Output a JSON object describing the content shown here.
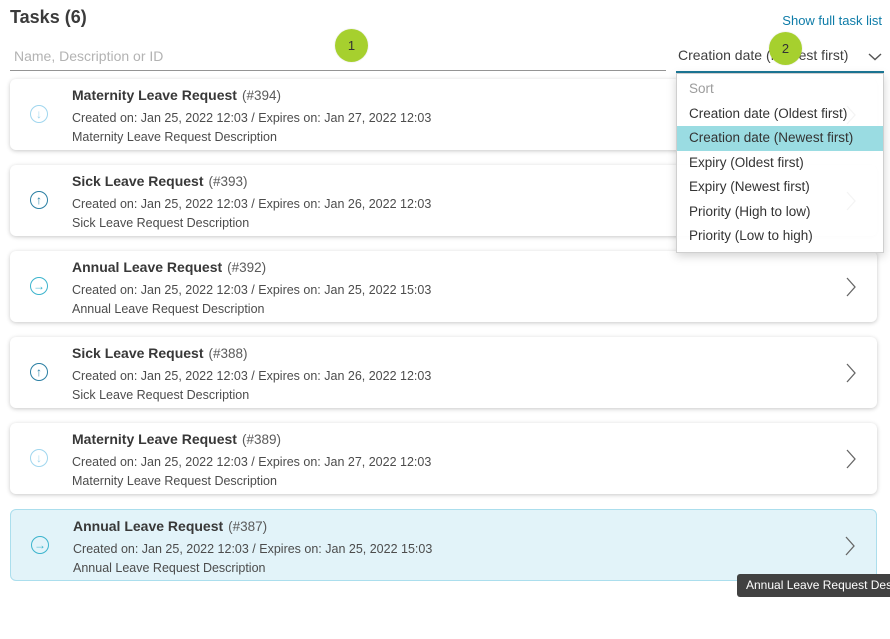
{
  "header": {
    "title": "Tasks (6)",
    "show_full_link": "Show full task list"
  },
  "search": {
    "placeholder": "Name, Description or ID"
  },
  "sort": {
    "value": "Creation date (Newest first)",
    "menu_header": "Sort",
    "options": [
      {
        "label": "Creation date (Oldest first)",
        "selected": false
      },
      {
        "label": "Creation date (Newest first)",
        "selected": true
      },
      {
        "label": "Expiry (Oldest first)",
        "selected": false
      },
      {
        "label": "Expiry (Newest first)",
        "selected": false
      },
      {
        "label": "Priority (High to low)",
        "selected": false
      },
      {
        "label": "Priority (Low to high)",
        "selected": false
      }
    ]
  },
  "annotations": {
    "badge1": "1",
    "badge2": "2"
  },
  "tasks": [
    {
      "name": "Maternity Leave Request",
      "ref": "(#394)",
      "meta": "Created on: Jan 25, 2022 12:03 / Expires on: Jan 27, 2022 12:03",
      "description": "Maternity Leave Request Description",
      "priority": "low",
      "selected": false
    },
    {
      "name": "Sick Leave Request",
      "ref": "(#393)",
      "meta": "Created on: Jan 25, 2022 12:03 / Expires on: Jan 26, 2022 12:03",
      "description": "Sick Leave Request Description",
      "priority": "high",
      "selected": false
    },
    {
      "name": "Annual Leave Request",
      "ref": "(#392)",
      "meta": "Created on: Jan 25, 2022 12:03 / Expires on: Jan 25, 2022 15:03",
      "description": "Annual Leave Request Description",
      "priority": "medium",
      "selected": false
    },
    {
      "name": "Sick Leave Request",
      "ref": "(#388)",
      "meta": "Created on: Jan 25, 2022 12:03 / Expires on: Jan 26, 2022 12:03",
      "description": "Sick Leave Request Description",
      "priority": "high",
      "selected": false
    },
    {
      "name": "Maternity Leave Request",
      "ref": "(#389)",
      "meta": "Created on: Jan 25, 2022 12:03 / Expires on: Jan 27, 2022 12:03",
      "description": "Maternity Leave Request Description",
      "priority": "low",
      "selected": false
    },
    {
      "name": "Annual Leave Request",
      "ref": "(#387)",
      "meta": "Created on: Jan 25, 2022 12:03 / Expires on: Jan 25, 2022 15:03",
      "description": "Annual Leave Request Description",
      "priority": "medium",
      "selected": true
    }
  ],
  "tooltip": {
    "text": "Annual Leave Request Description"
  },
  "icons": {
    "priority-low": "↓",
    "priority-high": "↑",
    "priority-medium": "→"
  },
  "colors": {
    "accent_link": "#0e7ca8",
    "select_underline": "#1b7897",
    "badge_green": "#a6d02e",
    "menu_highlight": "#9adce2",
    "selected_row_bg": "#e2f3f9",
    "selected_row_border": "#abdeed",
    "priority_low": "#a0d6ee",
    "priority_medium": "#3cb4cd",
    "priority_high": "#2b7fa3",
    "tooltip_bg": "#414141"
  }
}
